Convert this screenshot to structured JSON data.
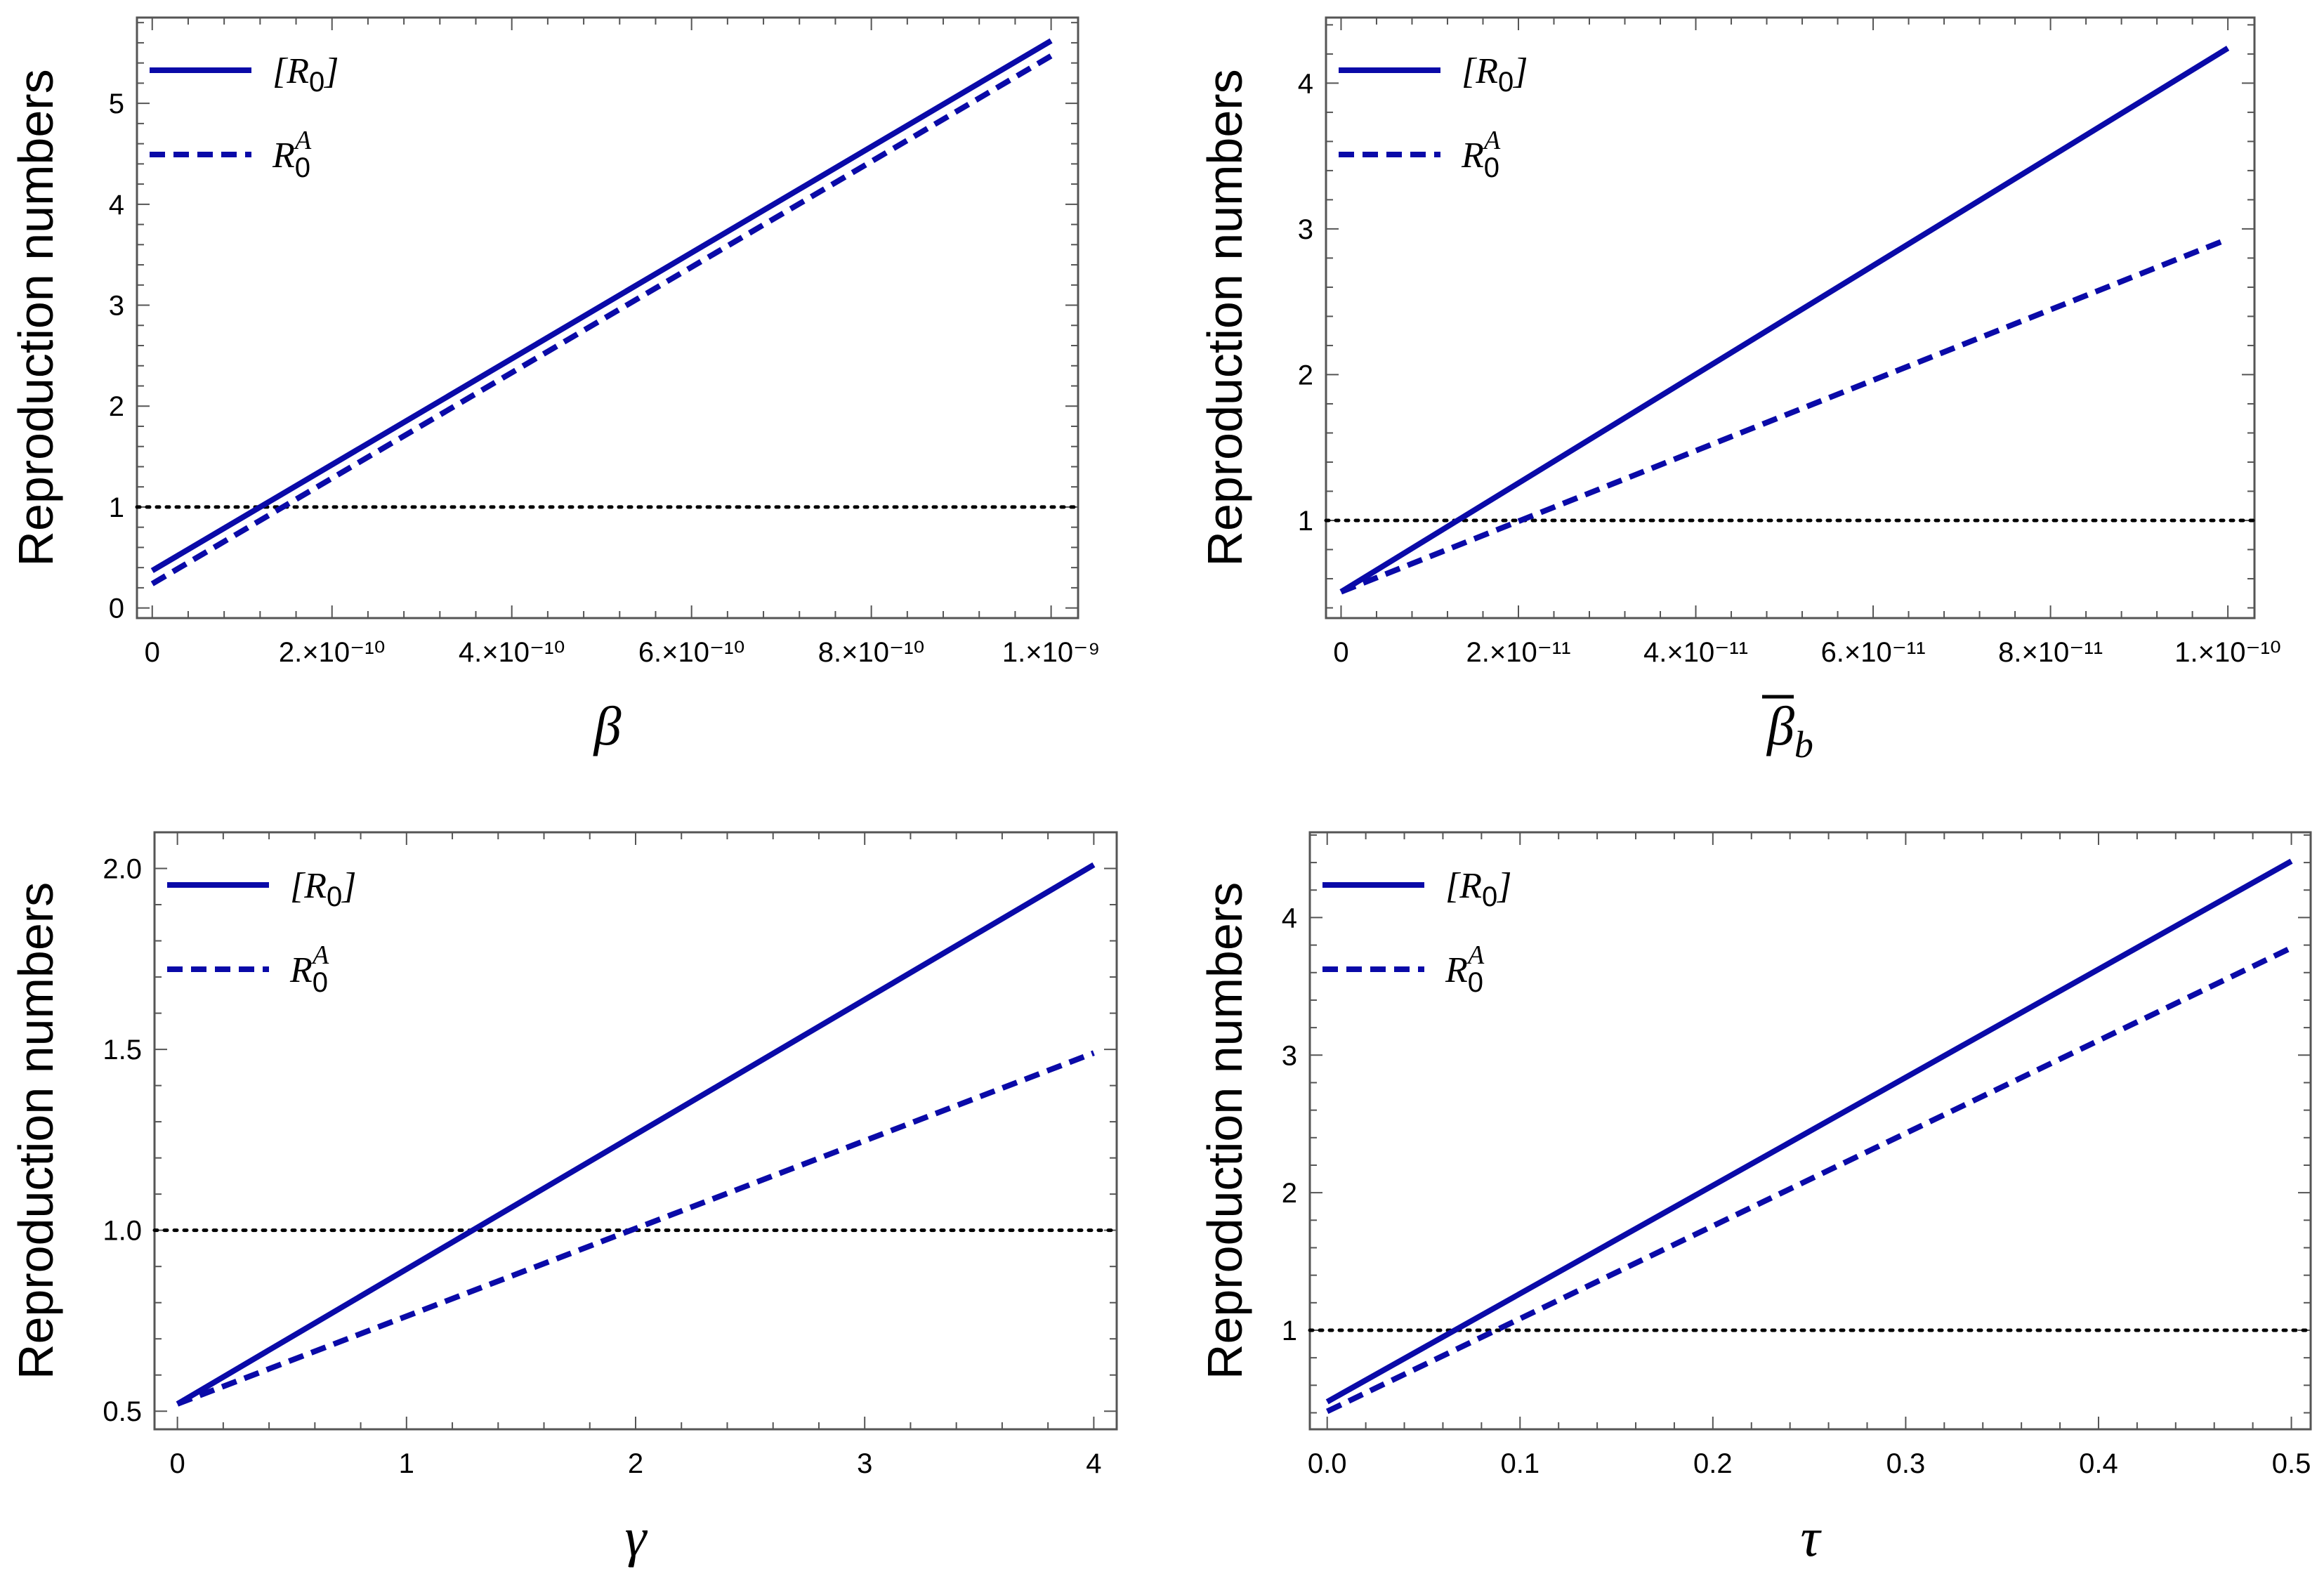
{
  "colors": {
    "series": "#0a0aa8",
    "threshold": "#000000",
    "frame": "#555555"
  },
  "chart_data": [
    {
      "type": "line",
      "panel": "top-left",
      "xlabel": "β",
      "ylabel": "Reproduction numbers",
      "xlim": [
        -1.7e-11,
        1.03e-09
      ],
      "ylim": [
        -0.1,
        5.85
      ],
      "x_ticks": [
        0,
        2e-10,
        4e-10,
        6e-10,
        8e-10,
        1e-09
      ],
      "x_tick_labels": [
        "0",
        "2.×10⁻¹⁰",
        "4.×10⁻¹⁰",
        "6.×10⁻¹⁰",
        "8.×10⁻¹⁰",
        "1.×10⁻⁹"
      ],
      "y_ticks": [
        0,
        1,
        2,
        3,
        4,
        5
      ],
      "y_tick_labels": [
        "0",
        "1",
        "2",
        "3",
        "4",
        "5"
      ],
      "threshold": 1,
      "legend": {
        "position": "top-left",
        "entries": [
          "[R0]",
          "R0A"
        ]
      },
      "series": [
        {
          "name": "[R0]",
          "style": "solid",
          "x": [
            0,
            1e-09
          ],
          "values": [
            0.37,
            5.62
          ]
        },
        {
          "name": "R0A",
          "style": "dashed",
          "x": [
            0,
            1e-09
          ],
          "values": [
            0.24,
            5.47
          ]
        }
      ]
    },
    {
      "type": "line",
      "panel": "top-right",
      "xlabel": "β̄b",
      "ylabel": "Reproduction numbers",
      "xlim": [
        -1.7e-12,
        1.03e-10
      ],
      "ylim": [
        0.33,
        4.45
      ],
      "x_ticks": [
        0,
        2e-11,
        4e-11,
        6e-11,
        8e-11,
        1e-10
      ],
      "x_tick_labels": [
        "0",
        "2.×10⁻¹¹",
        "4.×10⁻¹¹",
        "6.×10⁻¹¹",
        "8.×10⁻¹¹",
        "1.×10⁻¹⁰"
      ],
      "y_ticks": [
        1,
        2,
        3,
        4
      ],
      "y_tick_labels": [
        "1",
        "2",
        "3",
        "4"
      ],
      "threshold": 1,
      "legend": {
        "position": "top-left",
        "entries": [
          "[R0]",
          "R0A"
        ]
      },
      "series": [
        {
          "name": "[R0]",
          "style": "solid",
          "x": [
            0,
            1e-10
          ],
          "values": [
            0.51,
            4.24
          ]
        },
        {
          "name": "R0A",
          "style": "dashed",
          "x": [
            0,
            1e-10
          ],
          "values": [
            0.51,
            2.93
          ]
        }
      ]
    },
    {
      "type": "line",
      "panel": "bottom-left",
      "xlabel": "γ",
      "ylabel": "Reproduction numbers",
      "xlim": [
        -0.1,
        4.1
      ],
      "ylim": [
        0.45,
        2.1
      ],
      "x_ticks": [
        0,
        1,
        2,
        3,
        4
      ],
      "x_tick_labels": [
        "0",
        "1",
        "2",
        "3",
        "4"
      ],
      "y_ticks": [
        0.5,
        1.0,
        1.5,
        2.0
      ],
      "y_tick_labels": [
        "0.5",
        "1.0",
        "1.5",
        "2.0"
      ],
      "threshold": 1,
      "legend": {
        "position": "top-left",
        "entries": [
          "[R0]",
          "R0A"
        ]
      },
      "series": [
        {
          "name": "[R0]",
          "style": "solid",
          "x": [
            0,
            4
          ],
          "values": [
            0.52,
            2.01
          ]
        },
        {
          "name": "R0A",
          "style": "dashed",
          "x": [
            0,
            4
          ],
          "values": [
            0.52,
            1.49
          ]
        }
      ]
    },
    {
      "type": "line",
      "panel": "bottom-right",
      "xlabel": "τ",
      "ylabel": "Reproduction numbers",
      "xlim": [
        -0.009,
        0.51
      ],
      "ylim": [
        0.28,
        4.62
      ],
      "x_ticks": [
        0.0,
        0.1,
        0.2,
        0.3,
        0.4,
        0.5
      ],
      "x_tick_labels": [
        "0.0",
        "0.1",
        "0.2",
        "0.3",
        "0.4",
        "0.5"
      ],
      "y_ticks": [
        1,
        2,
        3,
        4
      ],
      "y_tick_labels": [
        "1",
        "2",
        "3",
        "4"
      ],
      "threshold": 1,
      "legend": {
        "position": "top-left",
        "entries": [
          "[R0]",
          "R0A"
        ]
      },
      "series": [
        {
          "name": "[R0]",
          "style": "solid",
          "x": [
            0,
            0.5
          ],
          "values": [
            0.48,
            4.41
          ]
        },
        {
          "name": "R0A",
          "style": "dashed",
          "x": [
            0,
            0.5
          ],
          "values": [
            0.41,
            3.78
          ]
        }
      ]
    }
  ]
}
